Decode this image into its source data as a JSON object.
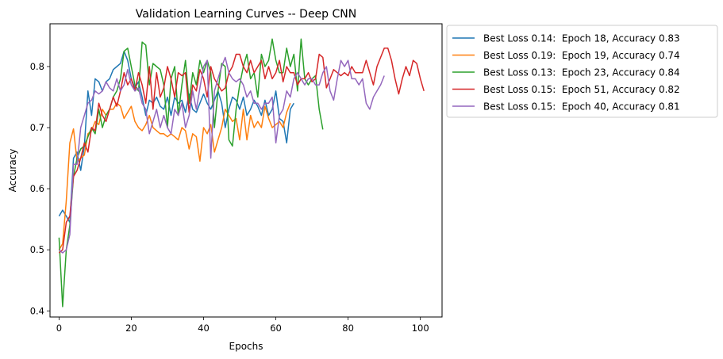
{
  "chart_data": {
    "type": "line",
    "title": "Validation Learning Curves -- Deep CNN",
    "xlabel": "Epochs",
    "ylabel": "Accuracy",
    "xlim": [
      -2.5,
      106
    ],
    "ylim": [
      0.39,
      0.87
    ],
    "xticks": [
      0,
      20,
      40,
      60,
      80,
      100
    ],
    "yticks": [
      0.4,
      0.5,
      0.6,
      0.7,
      0.8
    ],
    "grid": false,
    "legend_position": "outside upper right",
    "series": [
      {
        "name": "Best Loss 0.14:  Epoch 18, Accuracy 0.83",
        "color": "#1f77b4",
        "values": [
          0.555,
          0.565,
          0.555,
          0.545,
          0.65,
          0.66,
          0.63,
          0.67,
          0.76,
          0.72,
          0.78,
          0.775,
          0.76,
          0.775,
          0.78,
          0.795,
          0.8,
          0.805,
          0.825,
          0.81,
          0.78,
          0.765,
          0.775,
          0.75,
          0.72,
          0.745,
          0.74,
          0.75,
          0.735,
          0.73,
          0.75,
          0.72,
          0.75,
          0.74,
          0.745,
          0.725,
          0.755,
          0.73,
          0.725,
          0.74,
          0.755,
          0.74,
          0.73,
          0.745,
          0.76,
          0.74,
          0.7,
          0.73,
          0.75,
          0.745,
          0.73,
          0.75,
          0.72,
          0.73,
          0.745,
          0.735,
          0.72,
          0.745,
          0.72,
          0.73,
          0.76,
          0.715,
          0.71,
          0.675,
          0.73,
          0.74
        ]
      },
      {
        "name": "Best Loss 0.19:  Epoch 19, Accuracy 0.74",
        "color": "#ff7f0e",
        "values": [
          0.5,
          0.51,
          0.58,
          0.675,
          0.698,
          0.645,
          0.65,
          0.655,
          0.69,
          0.695,
          0.71,
          0.705,
          0.73,
          0.72,
          0.73,
          0.73,
          0.74,
          0.735,
          0.715,
          0.725,
          0.735,
          0.71,
          0.7,
          0.695,
          0.705,
          0.72,
          0.7,
          0.695,
          0.69,
          0.69,
          0.685,
          0.69,
          0.685,
          0.68,
          0.7,
          0.695,
          0.665,
          0.69,
          0.685,
          0.645,
          0.7,
          0.69,
          0.705,
          0.66,
          0.68,
          0.7,
          0.73,
          0.72,
          0.71,
          0.715,
          0.68,
          0.73,
          0.68,
          0.72,
          0.7,
          0.71,
          0.7,
          0.735,
          0.715,
          0.7,
          0.705,
          0.71,
          0.7,
          0.725,
          0.74
        ]
      },
      {
        "name": "Best Loss 0.13:  Epoch 23, Accuracy 0.84",
        "color": "#2ca02c",
        "values": [
          0.52,
          0.407,
          0.5,
          0.54,
          0.62,
          0.65,
          0.665,
          0.67,
          0.685,
          0.7,
          0.69,
          0.73,
          0.7,
          0.72,
          0.73,
          0.75,
          0.76,
          0.78,
          0.825,
          0.83,
          0.8,
          0.77,
          0.76,
          0.84,
          0.835,
          0.77,
          0.805,
          0.8,
          0.795,
          0.77,
          0.7,
          0.78,
          0.8,
          0.72,
          0.77,
          0.81,
          0.74,
          0.79,
          0.77,
          0.81,
          0.79,
          0.81,
          0.79,
          0.7,
          0.76,
          0.805,
          0.8,
          0.68,
          0.67,
          0.73,
          0.77,
          0.8,
          0.82,
          0.78,
          0.79,
          0.75,
          0.82,
          0.8,
          0.81,
          0.845,
          0.81,
          0.79,
          0.79,
          0.83,
          0.8,
          0.82,
          0.76,
          0.845,
          0.78,
          0.77,
          0.78,
          0.785,
          0.73,
          0.697
        ]
      },
      {
        "name": "Best Loss 0.15:  Epoch 51, Accuracy 0.82",
        "color": "#d62728",
        "values": [
          0.495,
          0.5,
          0.545,
          0.555,
          0.62,
          0.63,
          0.65,
          0.675,
          0.66,
          0.7,
          0.695,
          0.74,
          0.72,
          0.71,
          0.73,
          0.75,
          0.735,
          0.76,
          0.79,
          0.77,
          0.78,
          0.76,
          0.79,
          0.77,
          0.74,
          0.8,
          0.73,
          0.79,
          0.75,
          0.765,
          0.8,
          0.78,
          0.75,
          0.79,
          0.785,
          0.79,
          0.725,
          0.77,
          0.76,
          0.795,
          0.78,
          0.75,
          0.8,
          0.78,
          0.77,
          0.76,
          0.765,
          0.79,
          0.8,
          0.82,
          0.82,
          0.8,
          0.79,
          0.81,
          0.79,
          0.8,
          0.81,
          0.78,
          0.8,
          0.78,
          0.79,
          0.81,
          0.775,
          0.8,
          0.79,
          0.79,
          0.77,
          0.78,
          0.78,
          0.79,
          0.775,
          0.78,
          0.82,
          0.815,
          0.765,
          0.78,
          0.795,
          0.79,
          0.785,
          0.79,
          0.785,
          0.8,
          0.79,
          0.79,
          0.79,
          0.81,
          0.79,
          0.77,
          0.8,
          0.815,
          0.83,
          0.83,
          0.81,
          0.78,
          0.755,
          0.78,
          0.8,
          0.785,
          0.81,
          0.805,
          0.78,
          0.76
        ]
      },
      {
        "name": "Best Loss 0.15:  Epoch 40, Accuracy 0.81",
        "color": "#9467bd",
        "values": [
          0.5,
          0.495,
          0.5,
          0.525,
          0.64,
          0.64,
          0.7,
          0.72,
          0.74,
          0.745,
          0.76,
          0.755,
          0.76,
          0.775,
          0.765,
          0.76,
          0.78,
          0.76,
          0.77,
          0.795,
          0.77,
          0.76,
          0.765,
          0.74,
          0.73,
          0.69,
          0.71,
          0.73,
          0.7,
          0.72,
          0.7,
          0.69,
          0.73,
          0.72,
          0.74,
          0.7,
          0.72,
          0.76,
          0.73,
          0.765,
          0.8,
          0.81,
          0.65,
          0.76,
          0.78,
          0.8,
          0.815,
          0.79,
          0.78,
          0.775,
          0.78,
          0.77,
          0.75,
          0.76,
          0.74,
          0.74,
          0.73,
          0.74,
          0.74,
          0.75,
          0.675,
          0.72,
          0.73,
          0.76,
          0.75,
          0.78,
          0.79,
          0.78,
          0.77,
          0.78,
          0.78,
          0.77,
          0.77,
          0.79,
          0.8,
          0.76,
          0.745,
          0.78,
          0.81,
          0.8,
          0.81,
          0.78,
          0.78,
          0.77,
          0.78,
          0.74,
          0.73,
          0.75,
          0.76,
          0.77,
          0.785
        ]
      }
    ]
  }
}
